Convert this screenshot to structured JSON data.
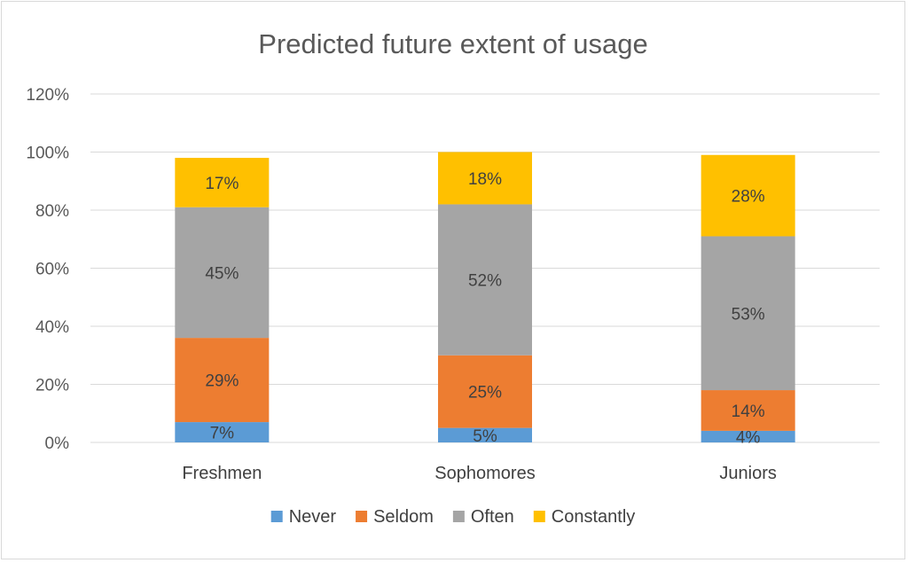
{
  "chart_data": {
    "type": "bar",
    "stacked": true,
    "title": "Predicted future extent of usage",
    "xlabel": "",
    "ylabel": "",
    "ylim": [
      0,
      1.2
    ],
    "y_ticks": [
      "0%",
      "20%",
      "40%",
      "60%",
      "80%",
      "100%",
      "120%"
    ],
    "y_tick_values": [
      0,
      0.2,
      0.4,
      0.6,
      0.8,
      1.0,
      1.2
    ],
    "grid": true,
    "legend_position": "bottom",
    "categories": [
      "Freshmen",
      "Sophomores",
      "Juniors"
    ],
    "series": [
      {
        "name": "Never",
        "color": "#5b9bd5",
        "values": [
          0.07,
          0.05,
          0.04
        ],
        "labels": [
          "7%",
          "5%",
          "4%"
        ]
      },
      {
        "name": "Seldom",
        "color": "#ed7d31",
        "values": [
          0.29,
          0.25,
          0.14
        ],
        "labels": [
          "29%",
          "25%",
          "14%"
        ]
      },
      {
        "name": "Often",
        "color": "#a5a5a5",
        "values": [
          0.45,
          0.52,
          0.53
        ],
        "labels": [
          "45%",
          "52%",
          "53%"
        ]
      },
      {
        "name": "Constantly",
        "color": "#ffc000",
        "values": [
          0.17,
          0.18,
          0.28
        ],
        "labels": [
          "17%",
          "18%",
          "28%"
        ]
      }
    ]
  }
}
